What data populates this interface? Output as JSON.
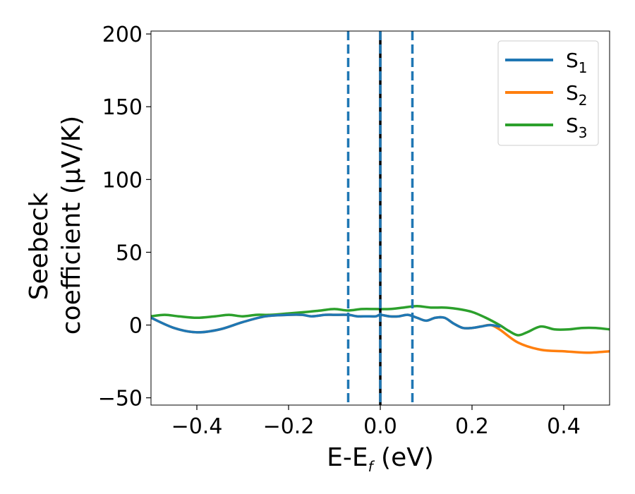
{
  "chart_data": {
    "type": "line",
    "xlabel": {
      "main": "E-E",
      "sub": "f",
      "unit": " (eV)"
    },
    "ylabel": {
      "line1": "Seebeck",
      "line2": "coefficient  (μV/K)"
    },
    "xlim": [
      -0.5,
      0.5
    ],
    "ylim": [
      -55,
      202
    ],
    "xticks": [
      -0.4,
      -0.2,
      0.0,
      0.2,
      0.4
    ],
    "xtick_labels": [
      "−0.4",
      "−0.2",
      "0.0",
      "0.2",
      "0.4"
    ],
    "yticks": [
      -50,
      0,
      50,
      100,
      150,
      200
    ],
    "ytick_labels": [
      "−50",
      "0",
      "50",
      "100",
      "150",
      "200"
    ],
    "grid": false,
    "legend_position": "top-right",
    "vlines": [
      {
        "x": 0.0,
        "color": "#000000",
        "style": "solid"
      },
      {
        "x": -0.07,
        "color": "#1f77b4",
        "style": "dashed"
      },
      {
        "x": 0.0,
        "color": "#1f77b4",
        "style": "dashed"
      },
      {
        "x": 0.07,
        "color": "#1f77b4",
        "style": "dashed"
      }
    ],
    "series": [
      {
        "name": "S",
        "sub": "1",
        "color": "#1f77b4",
        "x": [
          -0.5,
          -0.45,
          -0.4,
          -0.35,
          -0.3,
          -0.25,
          -0.2,
          -0.17,
          -0.15,
          -0.12,
          -0.1,
          -0.07,
          -0.05,
          -0.03,
          -0.01,
          0.0,
          0.02,
          0.04,
          0.06,
          0.08,
          0.1,
          0.12,
          0.14,
          0.16,
          0.18,
          0.2,
          0.22,
          0.24,
          0.26
        ],
        "y": [
          5,
          -2,
          -5,
          -3,
          2,
          6,
          7,
          7,
          6,
          7,
          7,
          7,
          6,
          6,
          6,
          7,
          6,
          6,
          7,
          5,
          3,
          5,
          5,
          1,
          -2,
          -2,
          -1,
          0,
          -1
        ]
      },
      {
        "name": "S",
        "sub": "2",
        "color": "#ff7f0e",
        "x": [
          -0.5,
          -0.45,
          -0.4,
          -0.35,
          -0.3,
          -0.25,
          -0.2,
          -0.17,
          -0.15,
          -0.12,
          -0.1,
          -0.07,
          -0.05,
          -0.03,
          -0.01,
          0.0,
          0.02,
          0.04,
          0.06,
          0.08,
          0.1,
          0.12,
          0.14,
          0.16,
          0.18,
          0.2,
          0.22,
          0.24,
          0.26,
          0.3,
          0.35,
          0.4,
          0.45,
          0.5
        ],
        "y": [
          5,
          -2,
          -5,
          -3,
          2,
          6,
          7,
          7,
          6,
          7,
          7,
          7,
          6,
          6,
          6,
          7,
          6,
          6,
          7,
          5,
          3,
          5,
          5,
          1,
          -2,
          -2,
          -1,
          0,
          -3,
          -12,
          -17,
          -18,
          -19,
          -18
        ]
      },
      {
        "name": "S",
        "sub": "3",
        "color": "#2ca02c",
        "x": [
          -0.5,
          -0.47,
          -0.44,
          -0.4,
          -0.36,
          -0.33,
          -0.3,
          -0.27,
          -0.24,
          -0.2,
          -0.16,
          -0.13,
          -0.1,
          -0.07,
          -0.04,
          -0.01,
          0.02,
          0.05,
          0.08,
          0.11,
          0.14,
          0.17,
          0.2,
          0.23,
          0.26,
          0.28,
          0.3,
          0.32,
          0.35,
          0.38,
          0.41,
          0.44,
          0.47,
          0.5
        ],
        "y": [
          6,
          7,
          6,
          5,
          6,
          7,
          6,
          7,
          7,
          8,
          9,
          10,
          11,
          10,
          11,
          11,
          11,
          12,
          13,
          12,
          12,
          11,
          9,
          5,
          0,
          -4,
          -7,
          -5,
          -1,
          -3,
          -3,
          -2,
          -2,
          -3
        ]
      }
    ]
  }
}
